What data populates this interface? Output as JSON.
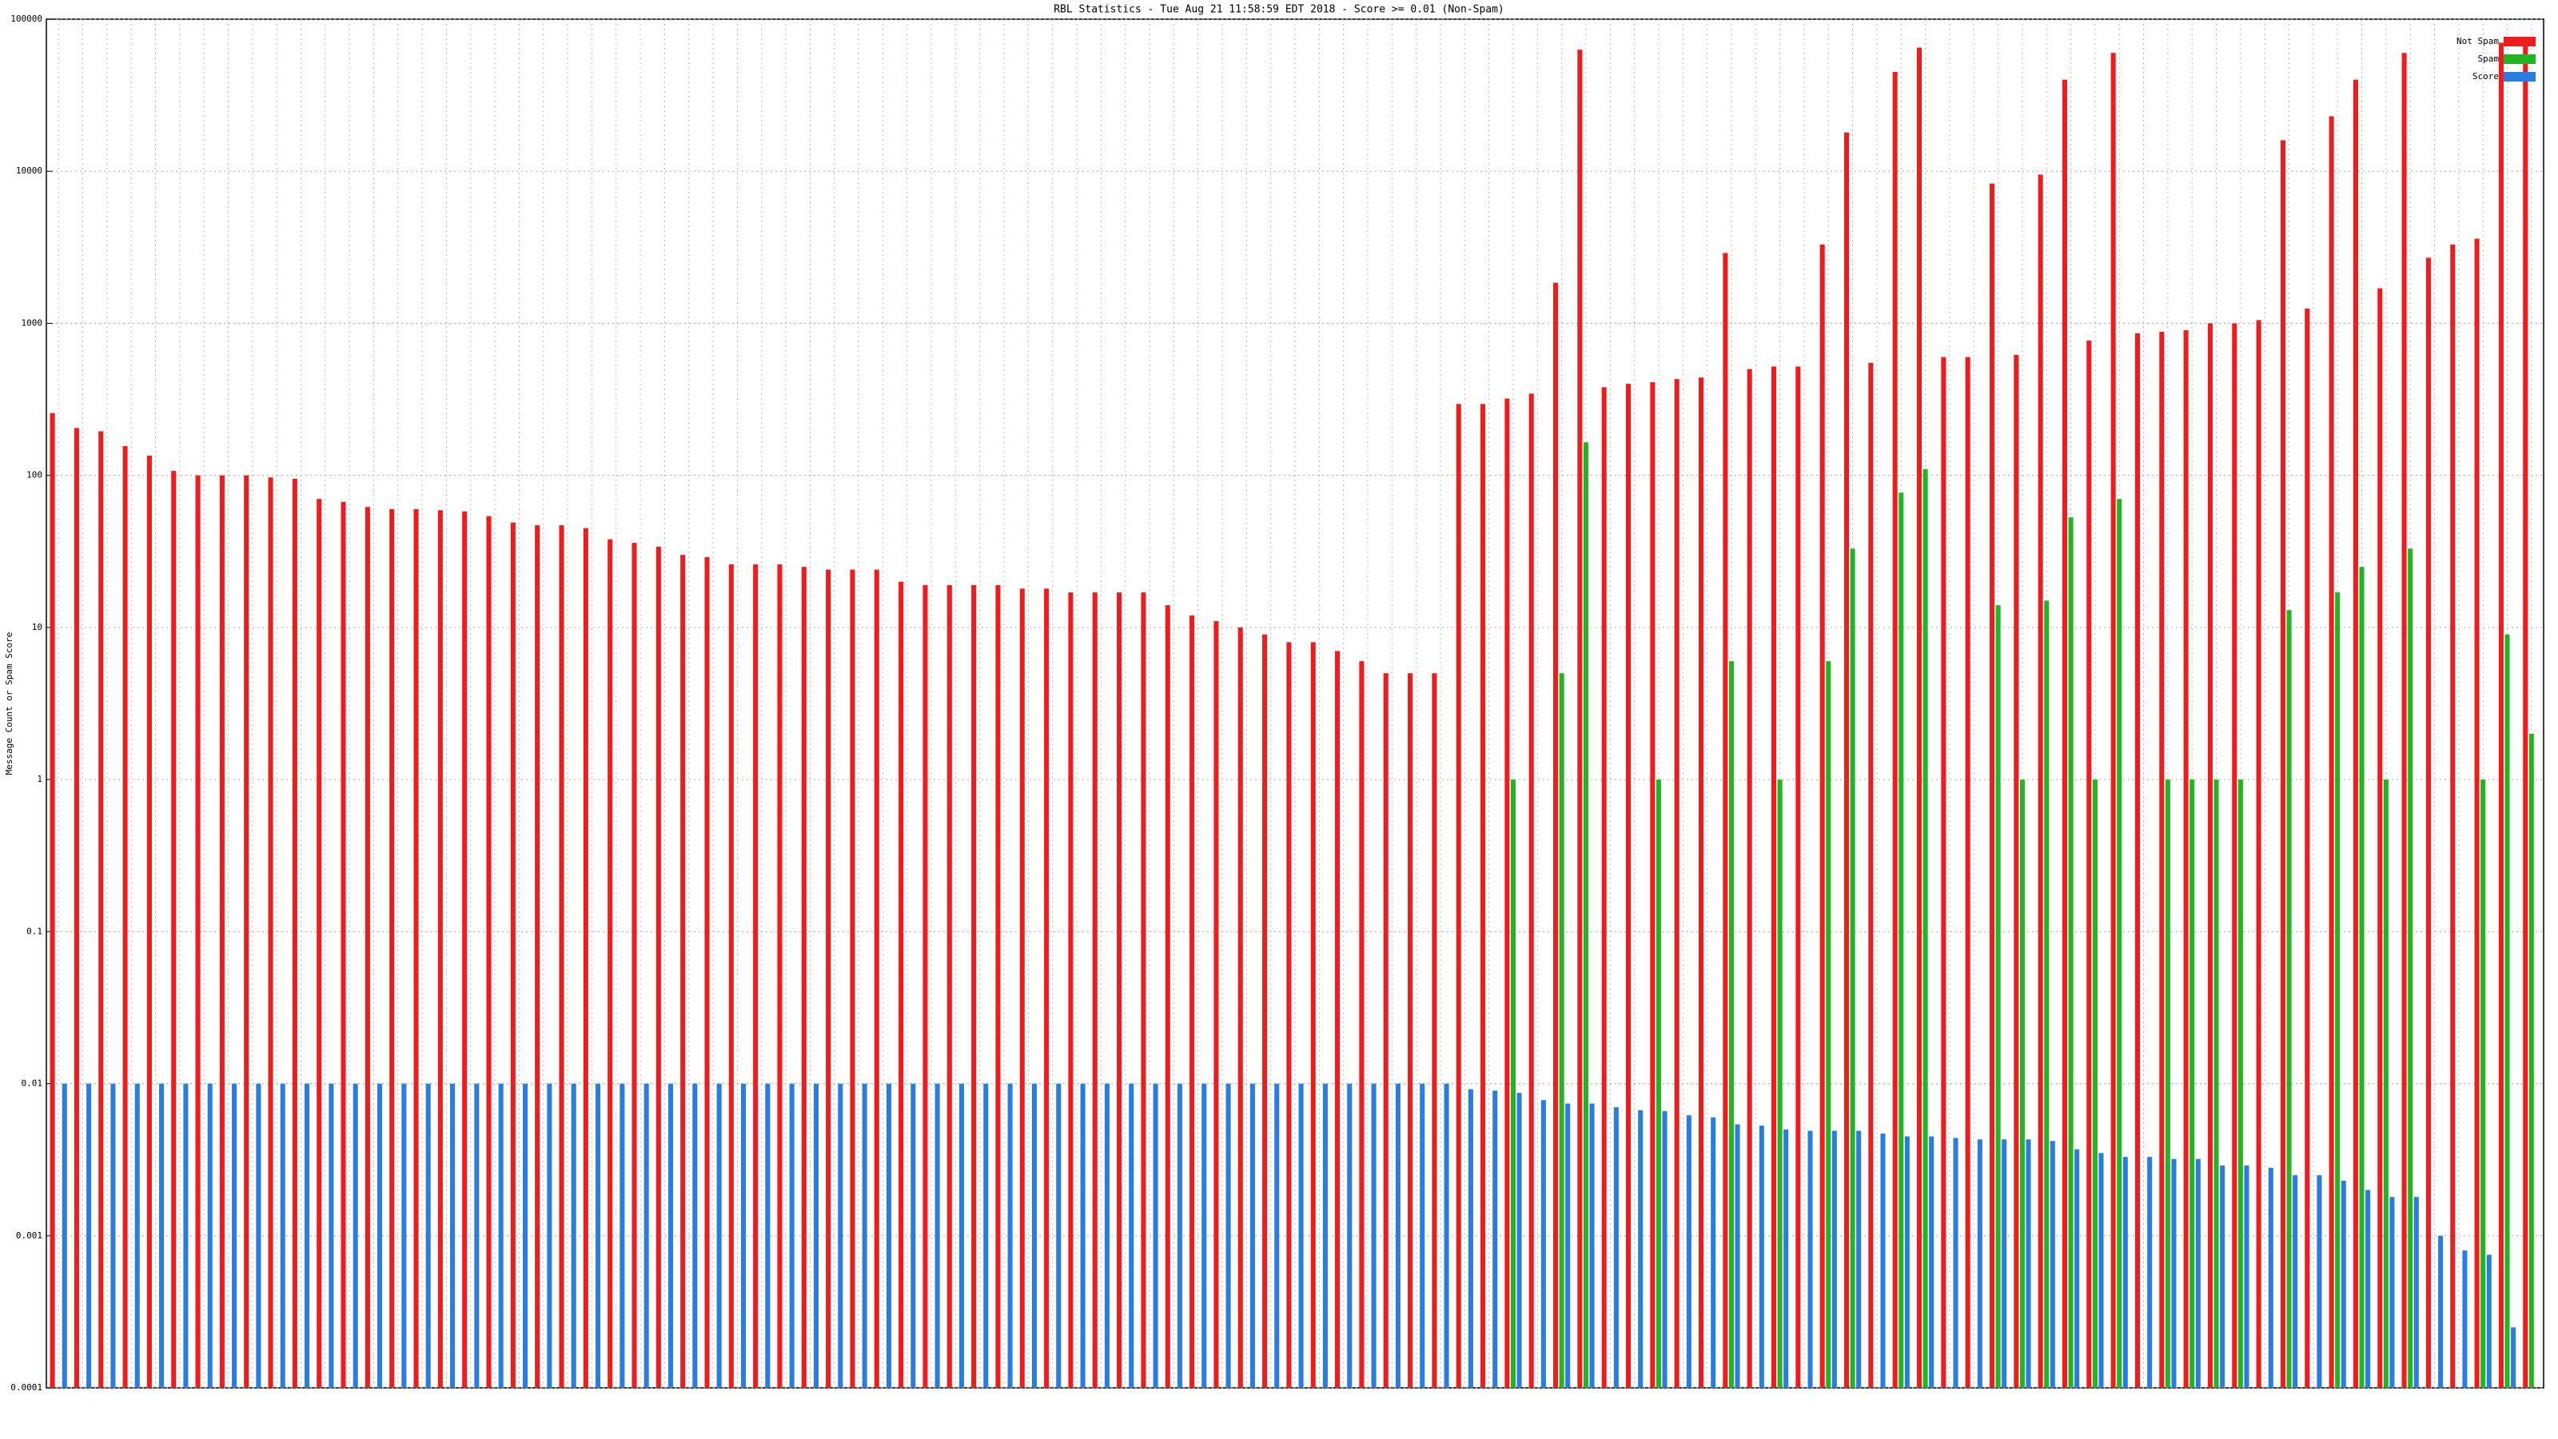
{
  "chart_data": {
    "type": "bar",
    "title": "RBL Statistics - Tue Aug 21 11:58:59 EDT 2018 - Score >= 0.01 (Non-Spam)",
    "y_label": "Message Count or Spam Score",
    "log_scale": true,
    "grid": true,
    "legend": "upper right",
    "ylim": [
      0.0001,
      100000
    ],
    "yticks": [
      0.0001,
      0.001,
      0.01,
      0.1,
      1,
      10,
      100,
      1000,
      10000,
      100000
    ],
    "categories": [
      null,
      null,
      null,
      null,
      null,
      null,
      null,
      null,
      null,
      null,
      null,
      null,
      null,
      null,
      null,
      null,
      null,
      null,
      null,
      null,
      null,
      null,
      null,
      null,
      null,
      null,
      null,
      null,
      null,
      null,
      null,
      null,
      null,
      null,
      null,
      null,
      null,
      null,
      null,
      null,
      null,
      null,
      null,
      null,
      null,
      null,
      null,
      null,
      null,
      null,
      null,
      null,
      null,
      null,
      null,
      null,
      null,
      null,
      null,
      null,
      null,
      null,
      null,
      null,
      null,
      null,
      null,
      null,
      null,
      null,
      null,
      null,
      null,
      null,
      null,
      null,
      null,
      null,
      null,
      null,
      null,
      null,
      null,
      null,
      null,
      null,
      null,
      null,
      null,
      null,
      null,
      null,
      null,
      null,
      null,
      null,
      null,
      null,
      null,
      null,
      null,
      null,
      null
    ],
    "series": [
      {
        "name": "Not Spam",
        "color": "#ee1c1c",
        "values": [
          257,
          205,
          195,
          156,
          135,
          107,
          100,
          100,
          100,
          97,
          95,
          70,
          67,
          62,
          60,
          60,
          59,
          58,
          54,
          49,
          47,
          47,
          45,
          38,
          36,
          34,
          30,
          29,
          26,
          26,
          26,
          25,
          24,
          24,
          24,
          20,
          19,
          19,
          19,
          19,
          18,
          18,
          17,
          17,
          17,
          17,
          14,
          12,
          11,
          10,
          9,
          8,
          8,
          7,
          6,
          5,
          5,
          5,
          295,
          295,
          320,
          345,
          1850,
          63000,
          380,
          400,
          410,
          430,
          440,
          2900,
          500,
          520,
          520,
          3300,
          18000,
          550,
          45000,
          65000,
          600,
          600,
          8300,
          620,
          9500,
          40000,
          770,
          60000,
          860,
          880,
          900,
          1000,
          1000,
          1050,
          16000,
          1250,
          23000,
          40000,
          1700,
          60000,
          2700,
          3300,
          3600,
          70000,
          70000
        ]
      },
      {
        "name": "Spam",
        "color": "#22b422",
        "values": [
          null,
          null,
          null,
          null,
          null,
          null,
          null,
          null,
          null,
          null,
          null,
          null,
          null,
          null,
          null,
          null,
          null,
          null,
          null,
          null,
          null,
          null,
          null,
          null,
          null,
          null,
          null,
          null,
          null,
          null,
          null,
          null,
          null,
          null,
          null,
          null,
          null,
          null,
          null,
          null,
          null,
          null,
          null,
          null,
          null,
          null,
          null,
          null,
          null,
          null,
          null,
          null,
          null,
          null,
          null,
          null,
          null,
          null,
          null,
          null,
          1,
          null,
          5,
          165,
          null,
          null,
          1,
          null,
          null,
          6,
          null,
          1,
          null,
          6,
          33,
          null,
          77,
          110,
          null,
          null,
          14,
          1,
          15,
          53,
          1,
          70,
          null,
          1,
          1,
          1,
          1,
          null,
          13,
          null,
          17,
          25,
          1,
          33,
          null,
          null,
          1,
          9,
          2
        ]
      },
      {
        "name": "Score",
        "color": "#2a7de0",
        "values": [
          0.01,
          0.01,
          0.01,
          0.01,
          0.01,
          0.01,
          0.01,
          0.01,
          0.01,
          0.01,
          0.01,
          0.01,
          0.01,
          0.01,
          0.01,
          0.01,
          0.01,
          0.01,
          0.01,
          0.01,
          0.01,
          0.01,
          0.01,
          0.01,
          0.01,
          0.01,
          0.01,
          0.01,
          0.01,
          0.01,
          0.01,
          0.01,
          0.01,
          0.01,
          0.01,
          0.01,
          0.01,
          0.01,
          0.01,
          0.01,
          0.01,
          0.01,
          0.01,
          0.01,
          0.01,
          0.01,
          0.01,
          0.01,
          0.01,
          0.01,
          0.01,
          0.01,
          0.01,
          0.01,
          0.01,
          0.01,
          0.01,
          0.01,
          0.0092,
          0.009,
          0.0087,
          0.0078,
          0.0074,
          0.0074,
          0.007,
          0.0067,
          0.0066,
          0.0062,
          0.006,
          0.0054,
          0.0053,
          0.005,
          0.0049,
          0.0049,
          0.0049,
          0.0047,
          0.0045,
          0.0045,
          0.0044,
          0.0043,
          0.0043,
          0.0043,
          0.0042,
          0.0037,
          0.0035,
          0.0033,
          0.0033,
          0.0032,
          0.0032,
          0.0029,
          0.0029,
          0.0028,
          0.0025,
          0.0025,
          0.0023,
          0.002,
          0.0018,
          0.0018,
          0.001,
          0.0008,
          0.00075,
          0.00025,
          null
        ]
      }
    ]
  }
}
